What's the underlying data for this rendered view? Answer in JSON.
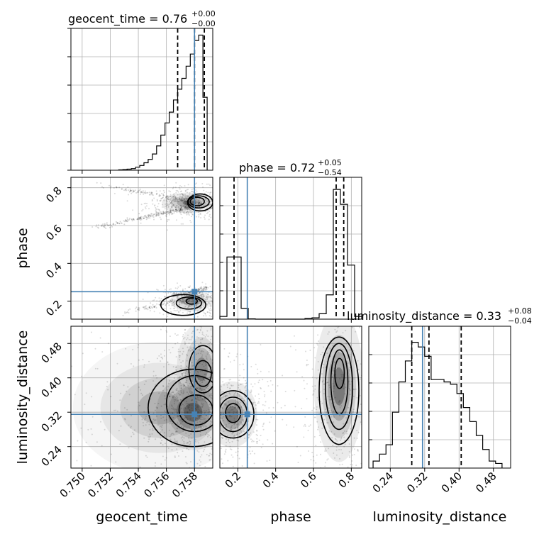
{
  "chart_data": {
    "type": "corner",
    "truth_color": "#4682b4",
    "contour_color": "#000000",
    "parameters": [
      {
        "name": "geocent_time",
        "label": "geocent_time",
        "title": {
          "prefix": "geocent_time = 0.76",
          "plus": "+0.00",
          "minus": "−0.00"
        },
        "range": [
          0.7492,
          0.7593
        ],
        "ticks": [
          0.75,
          0.752,
          0.754,
          0.756,
          0.758
        ],
        "tick_labels": [
          "0.750",
          "0.752",
          "0.754",
          "0.756",
          "0.758"
        ],
        "truth": 0.758,
        "quantiles": [
          0.7568,
          0.758,
          0.7587
        ],
        "hist": {
          "edges": [
            0.7526,
            0.7529,
            0.7532,
            0.7535,
            0.7538,
            0.7541,
            0.7544,
            0.7547,
            0.755,
            0.7553,
            0.7556,
            0.7559,
            0.7562,
            0.7565,
            0.7568,
            0.7571,
            0.7574,
            0.7577,
            0.758,
            0.7583,
            0.7586,
            0.7589
          ],
          "counts": [
            0.3,
            0.5,
            0.8,
            1.2,
            2.2,
            3.5,
            5.5,
            8,
            12,
            18,
            26,
            35,
            43,
            52,
            60,
            68,
            77,
            86,
            96,
            100,
            54
          ],
          "max": 100
        }
      },
      {
        "name": "phase",
        "label": "phase",
        "title": {
          "prefix": "phase = 0.72",
          "plus": "+0.05",
          "minus": "−0.54"
        },
        "range": [
          0.105,
          0.855
        ],
        "ticks": [
          0.2,
          0.4,
          0.6,
          0.8
        ],
        "tick_labels": [
          "0.2",
          "0.4",
          "0.6",
          "0.8"
        ],
        "truth": 0.25,
        "quantiles": [
          0.18,
          0.72,
          0.76
        ],
        "hist": {
          "edges": [
            0.105,
            0.1425,
            0.18,
            0.2175,
            0.255,
            0.2925,
            0.33,
            0.3675,
            0.405,
            0.4425,
            0.48,
            0.5175,
            0.555,
            0.5925,
            0.63,
            0.6675,
            0.705,
            0.7425,
            0.78,
            0.8175,
            0.855
          ],
          "counts": [
            2,
            46,
            46,
            8,
            0.2,
            0,
            0,
            0,
            0,
            0,
            0,
            0,
            0.5,
            1,
            4,
            18,
            96,
            85,
            40,
            2
          ],
          "max": 100
        }
      },
      {
        "name": "luminosity_distance",
        "label": "luminosity_distance",
        "title": {
          "prefix": "luminosity_distance = 0.33",
          "plus": "+0.08",
          "minus": "−0.04"
        },
        "range": [
          0.19,
          0.52
        ],
        "ticks": [
          0.24,
          0.32,
          0.4,
          0.48
        ],
        "tick_labels": [
          "0.24",
          "0.32",
          "0.40",
          "0.48"
        ],
        "truth": 0.315,
        "quantiles": [
          0.29,
          0.33,
          0.405
        ],
        "hist": {
          "edges": [
            0.2,
            0.215,
            0.23,
            0.245,
            0.26,
            0.275,
            0.29,
            0.305,
            0.32,
            0.335,
            0.35,
            0.365,
            0.38,
            0.395,
            0.41,
            0.425,
            0.44,
            0.455,
            0.47,
            0.485,
            0.5
          ],
          "counts": [
            3,
            6,
            10,
            24,
            37,
            46,
            54,
            52,
            48,
            38,
            38,
            37,
            36,
            32,
            26,
            20,
            14,
            8,
            3,
            2
          ],
          "max": 58
        }
      }
    ],
    "pairs": [
      {
        "x": "geocent_time",
        "y": "phase",
        "truth_x": 0.758,
        "truth_y": 0.25,
        "blobs": [
          {
            "x": 0.75765,
            "y": 0.72,
            "sx": 0.0009,
            "sy": 0.025,
            "w": 1.0
          },
          {
            "x": 0.7578,
            "y": 0.2,
            "sx": 0.0007,
            "sy": 0.025,
            "w": 0.8
          }
        ],
        "sheets": [
          {
            "x0": 0.7505,
            "y0": 0.58,
            "x1": 0.7585,
            "y1": 0.71,
            "count": 260
          },
          {
            "x0": 0.751,
            "y0": 0.82,
            "x1": 0.7575,
            "y1": 0.73,
            "count": 120
          },
          {
            "x0": 0.7525,
            "y0": 0.13,
            "x1": 0.7585,
            "y1": 0.23,
            "count": 140
          },
          {
            "x0": 0.756,
            "y0": 0.22,
            "x1": 0.759,
            "y1": 0.27,
            "count": 90
          }
        ],
        "contours": [
          {
            "cx": 0.7584,
            "cy": 0.722,
            "rx": 0.0009,
            "ry": 0.045
          },
          {
            "cx": 0.7583,
            "cy": 0.725,
            "rx": 0.00075,
            "ry": 0.032
          },
          {
            "cx": 0.7582,
            "cy": 0.727,
            "rx": 0.0005,
            "ry": 0.022
          },
          {
            "cx": 0.7572,
            "cy": 0.18,
            "rx": 0.0016,
            "ry": 0.055
          },
          {
            "cx": 0.7576,
            "cy": 0.19,
            "rx": 0.0009,
            "ry": 0.032
          },
          {
            "cx": 0.7578,
            "cy": 0.2,
            "rx": 0.0004,
            "ry": 0.016
          }
        ]
      },
      {
        "x": "geocent_time",
        "y": "luminosity_distance",
        "truth_x": 0.758,
        "truth_y": 0.315,
        "blobs": [
          {
            "x": 0.7579,
            "y": 0.32,
            "sx": 0.0012,
            "sy": 0.04,
            "w": 1.0
          },
          {
            "x": 0.7585,
            "y": 0.42,
            "sx": 0.0008,
            "sy": 0.05,
            "w": 0.8
          },
          {
            "x": 0.7555,
            "y": 0.33,
            "sx": 0.0028,
            "sy": 0.07,
            "w": 0.5
          }
        ],
        "sheets": [],
        "contours": [
          {
            "cx": 0.7579,
            "cy": 0.33,
            "rx": 0.0032,
            "ry": 0.09
          },
          {
            "cx": 0.758,
            "cy": 0.34,
            "rx": 0.002,
            "ry": 0.065
          },
          {
            "cx": 0.7581,
            "cy": 0.325,
            "rx": 0.0012,
            "ry": 0.035
          },
          {
            "cx": 0.7586,
            "cy": 0.42,
            "rx": 0.001,
            "ry": 0.055
          },
          {
            "cx": 0.7586,
            "cy": 0.41,
            "rx": 0.0006,
            "ry": 0.03
          }
        ]
      },
      {
        "x": "phase",
        "y": "luminosity_distance",
        "truth_x": 0.25,
        "truth_y": 0.315,
        "blobs": [
          {
            "x": 0.17,
            "y": 0.315,
            "sx": 0.06,
            "sy": 0.035,
            "w": 1.0
          },
          {
            "x": 0.735,
            "y": 0.38,
            "sx": 0.06,
            "sy": 0.08,
            "w": 1.0
          }
        ],
        "sheets": [],
        "contours": [
          {
            "cx": 0.175,
            "cy": 0.315,
            "rx": 0.11,
            "ry": 0.055
          },
          {
            "cx": 0.175,
            "cy": 0.315,
            "rx": 0.075,
            "ry": 0.04
          },
          {
            "cx": 0.175,
            "cy": 0.318,
            "rx": 0.04,
            "ry": 0.022
          },
          {
            "cx": 0.735,
            "cy": 0.37,
            "rx": 0.105,
            "ry": 0.125
          },
          {
            "cx": 0.735,
            "cy": 0.38,
            "rx": 0.072,
            "ry": 0.1
          },
          {
            "cx": 0.737,
            "cy": 0.39,
            "rx": 0.045,
            "ry": 0.075
          },
          {
            "cx": 0.738,
            "cy": 0.41,
            "rx": 0.025,
            "ry": 0.035
          }
        ]
      }
    ]
  }
}
